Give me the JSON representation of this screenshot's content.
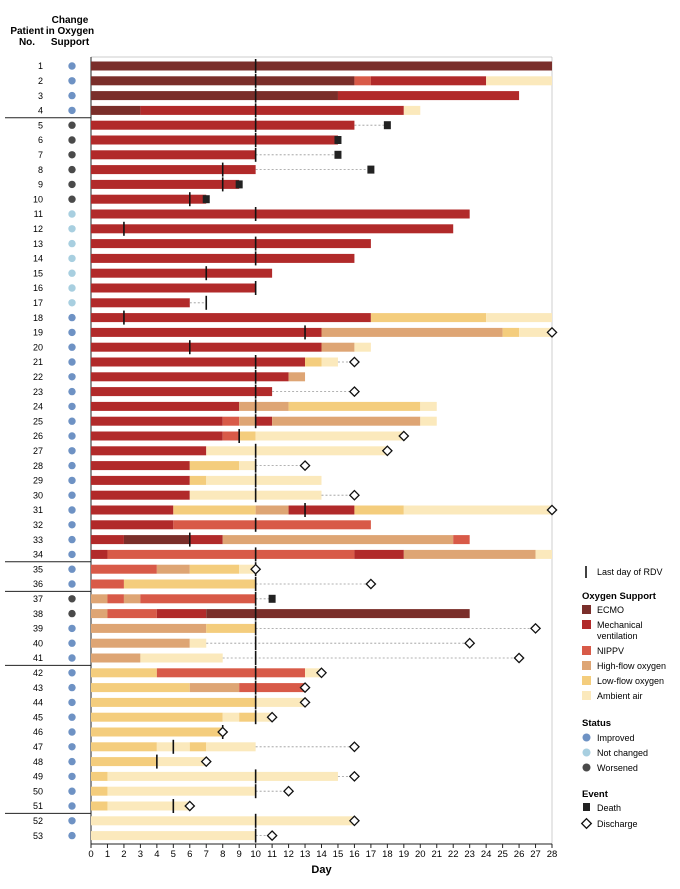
{
  "chart_data": {
    "type": "timeline",
    "xlabel": "Day",
    "xlim": [
      0,
      28
    ],
    "xticks": [
      0,
      1,
      2,
      3,
      4,
      5,
      6,
      7,
      8,
      9,
      10,
      11,
      12,
      13,
      14,
      15,
      16,
      17,
      18,
      19,
      20,
      21,
      22,
      23,
      24,
      25,
      26,
      27,
      28
    ],
    "header_patient": [
      "Patient",
      "No."
    ],
    "header_change": [
      "Change",
      "in Oxygen",
      "Support"
    ],
    "colors": {
      "ecmo": "#7a2e2a",
      "mech": "#b12a2a",
      "nippv": "#d85a48",
      "hfo": "#dea574",
      "lfo": "#f4cd7d",
      "air": "#fbe9bc",
      "improved": "#6e92c4",
      "notchanged": "#a8cfe0",
      "worsened": "#4a4a4a"
    },
    "legend": {
      "rdv": "Last day of RDV",
      "oxygen_title": "Oxygen Support",
      "oxygen_items": [
        {
          "key": "ecmo",
          "label": [
            "ECMO"
          ]
        },
        {
          "key": "mech",
          "label": [
            "Mechanical",
            "ventilation"
          ]
        },
        {
          "key": "nippv",
          "label": [
            "NIPPV"
          ]
        },
        {
          "key": "hfo",
          "label": [
            "High-flow oxygen"
          ]
        },
        {
          "key": "lfo",
          "label": [
            "Low-flow oxygen"
          ]
        },
        {
          "key": "air",
          "label": [
            "Ambient air"
          ]
        }
      ],
      "status_title": "Status",
      "status_items": [
        {
          "key": "improved",
          "label": "Improved"
        },
        {
          "key": "notchanged",
          "label": "Not changed"
        },
        {
          "key": "worsened",
          "label": "Worsened"
        }
      ],
      "event_title": "Event",
      "event_items": [
        {
          "key": "death",
          "label": "Death"
        },
        {
          "key": "discharge",
          "label": "Discharge"
        }
      ]
    },
    "group_breaks_after": [
      4,
      34,
      36,
      41,
      51
    ],
    "patients": [
      {
        "id": "1",
        "status": "improved",
        "rdv": 10,
        "seg": [
          [
            "ecmo",
            0,
            28
          ]
        ]
      },
      {
        "id": "2",
        "status": "improved",
        "rdv": 10,
        "seg": [
          [
            "ecmo",
            0,
            16
          ],
          [
            "nippv",
            16,
            17
          ],
          [
            "mech",
            17,
            24
          ],
          [
            "air",
            24,
            28
          ]
        ]
      },
      {
        "id": "3",
        "status": "improved",
        "rdv": 10,
        "seg": [
          [
            "ecmo",
            0,
            15
          ],
          [
            "mech",
            15,
            26
          ]
        ]
      },
      {
        "id": "4",
        "status": "improved",
        "rdv": 10,
        "seg": [
          [
            "ecmo",
            0,
            3
          ],
          [
            "mech",
            3,
            19
          ],
          [
            "air",
            19,
            20
          ]
        ]
      },
      {
        "id": "5",
        "status": "worsened",
        "rdv": 10,
        "seg": [
          [
            "mech",
            0,
            16
          ]
        ],
        "end": 18,
        "event": "death"
      },
      {
        "id": "6",
        "status": "worsened",
        "rdv": 10,
        "seg": [
          [
            "mech",
            0,
            15
          ]
        ],
        "end": 15,
        "event": "death"
      },
      {
        "id": "7",
        "status": "worsened",
        "rdv": 10,
        "seg": [
          [
            "mech",
            0,
            10
          ]
        ],
        "end": 15,
        "event": "death"
      },
      {
        "id": "8",
        "status": "worsened",
        "rdv": 8,
        "seg": [
          [
            "mech",
            0,
            10
          ]
        ],
        "end": 17,
        "event": "death"
      },
      {
        "id": "9",
        "status": "worsened",
        "rdv": 8,
        "seg": [
          [
            "mech",
            0,
            9
          ]
        ],
        "end": 9,
        "event": "death"
      },
      {
        "id": "10",
        "status": "worsened",
        "rdv": 6,
        "seg": [
          [
            "mech",
            0,
            7
          ]
        ],
        "end": 7,
        "event": "death"
      },
      {
        "id": "11",
        "status": "notchanged",
        "rdv": 10,
        "seg": [
          [
            "mech",
            0,
            23
          ]
        ]
      },
      {
        "id": "12",
        "status": "notchanged",
        "rdv": 2,
        "seg": [
          [
            "mech",
            0,
            22
          ]
        ]
      },
      {
        "id": "13",
        "status": "notchanged",
        "rdv": 10,
        "seg": [
          [
            "mech",
            0,
            17
          ]
        ]
      },
      {
        "id": "14",
        "status": "notchanged",
        "rdv": 10,
        "seg": [
          [
            "mech",
            0,
            16
          ]
        ]
      },
      {
        "id": "15",
        "status": "notchanged",
        "rdv": 7,
        "seg": [
          [
            "mech",
            0,
            11
          ]
        ]
      },
      {
        "id": "16",
        "status": "notchanged",
        "rdv": 10,
        "seg": [
          [
            "mech",
            0,
            10
          ]
        ]
      },
      {
        "id": "17",
        "status": "notchanged",
        "rdv": 7,
        "seg": [
          [
            "mech",
            0,
            6
          ]
        ],
        "end": 7
      },
      {
        "id": "18",
        "status": "improved",
        "rdv": 2,
        "seg": [
          [
            "mech",
            0,
            17
          ],
          [
            "lfo",
            17,
            24
          ],
          [
            "air",
            24,
            28
          ]
        ]
      },
      {
        "id": "19",
        "status": "improved",
        "rdv": 13,
        "seg": [
          [
            "mech",
            0,
            14
          ],
          [
            "hfo",
            14,
            25
          ],
          [
            "lfo",
            25,
            26
          ],
          [
            "air",
            26,
            28
          ]
        ],
        "end": 28,
        "event": "discharge"
      },
      {
        "id": "20",
        "status": "improved",
        "rdv": 6,
        "seg": [
          [
            "mech",
            0,
            14
          ],
          [
            "hfo",
            14,
            16
          ],
          [
            "air",
            16,
            17
          ]
        ]
      },
      {
        "id": "21",
        "status": "improved",
        "rdv": 10,
        "seg": [
          [
            "mech",
            0,
            13
          ],
          [
            "lfo",
            13,
            14
          ],
          [
            "air",
            14,
            15
          ]
        ],
        "end": 16,
        "event": "discharge"
      },
      {
        "id": "22",
        "status": "improved",
        "rdv": 10,
        "seg": [
          [
            "mech",
            0,
            12
          ],
          [
            "hfo",
            12,
            13
          ]
        ]
      },
      {
        "id": "23",
        "status": "improved",
        "rdv": 10,
        "seg": [
          [
            "mech",
            0,
            11
          ]
        ],
        "end": 16,
        "event": "discharge"
      },
      {
        "id": "24",
        "status": "improved",
        "rdv": 10,
        "seg": [
          [
            "mech",
            0,
            9
          ],
          [
            "hfo",
            9,
            12
          ],
          [
            "lfo",
            12,
            20
          ],
          [
            "air",
            20,
            21
          ]
        ]
      },
      {
        "id": "25",
        "status": "improved",
        "rdv": 10,
        "seg": [
          [
            "mech",
            0,
            8
          ],
          [
            "nippv",
            8,
            9
          ],
          [
            "hfo",
            9,
            10
          ],
          [
            "mech",
            10,
            11
          ],
          [
            "hfo",
            11,
            20
          ],
          [
            "air",
            20,
            21
          ]
        ]
      },
      {
        "id": "26",
        "status": "improved",
        "rdv": 9,
        "seg": [
          [
            "mech",
            0,
            8
          ],
          [
            "nippv",
            8,
            9
          ],
          [
            "lfo",
            9,
            10
          ],
          [
            "air",
            10,
            19
          ]
        ],
        "end": 19,
        "event": "discharge"
      },
      {
        "id": "27",
        "status": "improved",
        "rdv": 10,
        "seg": [
          [
            "mech",
            0,
            7
          ],
          [
            "air",
            7,
            18
          ]
        ],
        "end": 18,
        "event": "discharge"
      },
      {
        "id": "28",
        "status": "improved",
        "rdv": 10,
        "seg": [
          [
            "mech",
            0,
            6
          ],
          [
            "lfo",
            6,
            9
          ],
          [
            "air",
            9,
            10
          ]
        ],
        "end": 13,
        "event": "discharge"
      },
      {
        "id": "29",
        "status": "improved",
        "rdv": 10,
        "seg": [
          [
            "mech",
            0,
            6
          ],
          [
            "lfo",
            6,
            7
          ],
          [
            "air",
            7,
            14
          ]
        ]
      },
      {
        "id": "30",
        "status": "improved",
        "rdv": 10,
        "seg": [
          [
            "mech",
            0,
            6
          ],
          [
            "air",
            6,
            14
          ]
        ],
        "end": 16,
        "event": "discharge"
      },
      {
        "id": "31",
        "status": "improved",
        "rdv": 13,
        "seg": [
          [
            "mech",
            0,
            5
          ],
          [
            "lfo",
            5,
            10
          ],
          [
            "hfo",
            10,
            12
          ],
          [
            "mech",
            12,
            16
          ],
          [
            "lfo",
            16,
            19
          ],
          [
            "air",
            19,
            28
          ]
        ],
        "end": 28,
        "event": "discharge"
      },
      {
        "id": "32",
        "status": "improved",
        "rdv": 10,
        "seg": [
          [
            "mech",
            0,
            5
          ],
          [
            "nippv",
            5,
            17
          ]
        ]
      },
      {
        "id": "33",
        "status": "improved",
        "rdv": 6,
        "seg": [
          [
            "mech",
            0,
            2
          ],
          [
            "ecmo",
            2,
            6
          ],
          [
            "mech",
            6,
            8
          ],
          [
            "hfo",
            8,
            22
          ],
          [
            "nippv",
            22,
            23
          ]
        ]
      },
      {
        "id": "34",
        "status": "improved",
        "rdv": 10,
        "seg": [
          [
            "mech",
            0,
            1
          ],
          [
            "nippv",
            1,
            16
          ],
          [
            "mech",
            16,
            19
          ],
          [
            "hfo",
            19,
            27
          ],
          [
            "air",
            27,
            28
          ]
        ]
      },
      {
        "id": "35",
        "status": "improved",
        "rdv": 10,
        "seg": [
          [
            "nippv",
            0,
            4
          ],
          [
            "hfo",
            4,
            6
          ],
          [
            "lfo",
            6,
            9
          ],
          [
            "air",
            9,
            10
          ]
        ],
        "end": 10,
        "event": "discharge"
      },
      {
        "id": "36",
        "status": "improved",
        "rdv": 10,
        "seg": [
          [
            "nippv",
            0,
            2
          ],
          [
            "lfo",
            2,
            10
          ]
        ],
        "end": 17,
        "event": "discharge"
      },
      {
        "id": "37",
        "status": "worsened",
        "rdv": 10,
        "seg": [
          [
            "hfo",
            0,
            1
          ],
          [
            "nippv",
            1,
            2
          ],
          [
            "hfo",
            2,
            3
          ],
          [
            "nippv",
            3,
            10
          ]
        ],
        "end": 11,
        "event": "death"
      },
      {
        "id": "38",
        "status": "worsened",
        "rdv": 10,
        "seg": [
          [
            "hfo",
            0,
            1
          ],
          [
            "nippv",
            1,
            4
          ],
          [
            "mech",
            4,
            7
          ],
          [
            "ecmo",
            7,
            23
          ]
        ]
      },
      {
        "id": "39",
        "status": "improved",
        "rdv": 10,
        "seg": [
          [
            "hfo",
            0,
            7
          ],
          [
            "lfo",
            7,
            10
          ]
        ],
        "end": 27,
        "event": "discharge"
      },
      {
        "id": "40",
        "status": "improved",
        "rdv": 10,
        "seg": [
          [
            "hfo",
            0,
            6
          ],
          [
            "air",
            6,
            7
          ]
        ],
        "end": 23,
        "event": "discharge"
      },
      {
        "id": "41",
        "status": "improved",
        "rdv": 10,
        "seg": [
          [
            "hfo",
            0,
            3
          ],
          [
            "air",
            3,
            8
          ]
        ],
        "end": 26,
        "event": "discharge"
      },
      {
        "id": "42",
        "status": "improved",
        "rdv": 10,
        "seg": [
          [
            "lfo",
            0,
            4
          ],
          [
            "nippv",
            4,
            13
          ],
          [
            "air",
            13,
            14
          ]
        ],
        "end": 14,
        "event": "discharge"
      },
      {
        "id": "43",
        "status": "improved",
        "rdv": 10,
        "seg": [
          [
            "lfo",
            0,
            6
          ],
          [
            "hfo",
            6,
            9
          ],
          [
            "nippv",
            9,
            13
          ]
        ],
        "end": 13,
        "event": "discharge"
      },
      {
        "id": "44",
        "status": "improved",
        "rdv": 10,
        "seg": [
          [
            "lfo",
            0,
            10
          ],
          [
            "air",
            10,
            13
          ]
        ],
        "end": 13,
        "event": "discharge"
      },
      {
        "id": "45",
        "status": "improved",
        "rdv": 10,
        "seg": [
          [
            "lfo",
            0,
            8
          ],
          [
            "air",
            8,
            9
          ],
          [
            "lfo",
            9,
            10
          ],
          [
            "air",
            10,
            11
          ]
        ],
        "end": 11,
        "event": "discharge"
      },
      {
        "id": "46",
        "status": "improved",
        "rdv": 8,
        "seg": [
          [
            "lfo",
            0,
            8
          ]
        ],
        "end": 8,
        "event": "discharge"
      },
      {
        "id": "47",
        "status": "improved",
        "rdv": 5,
        "seg": [
          [
            "lfo",
            0,
            4
          ],
          [
            "air",
            4,
            6
          ],
          [
            "lfo",
            6,
            7
          ],
          [
            "air",
            7,
            10
          ]
        ],
        "end": 16,
        "event": "discharge"
      },
      {
        "id": "48",
        "status": "improved",
        "rdv": 4,
        "seg": [
          [
            "lfo",
            0,
            4
          ],
          [
            "air",
            4,
            7
          ]
        ],
        "end": 7,
        "event": "discharge"
      },
      {
        "id": "49",
        "status": "improved",
        "rdv": 10,
        "seg": [
          [
            "lfo",
            0,
            1
          ],
          [
            "air",
            1,
            15
          ]
        ],
        "end": 16,
        "event": "discharge"
      },
      {
        "id": "50",
        "status": "improved",
        "rdv": 10,
        "seg": [
          [
            "lfo",
            0,
            1
          ],
          [
            "air",
            1,
            10
          ]
        ],
        "end": 12,
        "event": "discharge"
      },
      {
        "id": "51",
        "status": "improved",
        "rdv": 5,
        "seg": [
          [
            "lfo",
            0,
            1
          ],
          [
            "air",
            1,
            6
          ]
        ],
        "end": 6,
        "event": "discharge"
      },
      {
        "id": "52",
        "status": "improved",
        "rdv": 10,
        "seg": [
          [
            "air",
            0,
            16
          ]
        ],
        "end": 16,
        "event": "discharge"
      },
      {
        "id": "53",
        "status": "improved",
        "rdv": 10,
        "seg": [
          [
            "air",
            0,
            10
          ]
        ],
        "end": 11,
        "event": "discharge"
      }
    ]
  }
}
